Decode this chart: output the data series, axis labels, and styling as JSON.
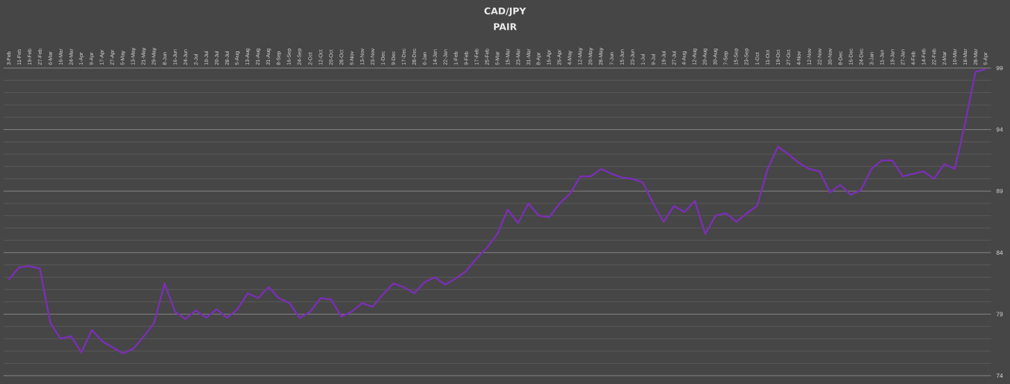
{
  "chart_data": {
    "type": "line",
    "title": "CAD/JPY",
    "subtitle": "PAIR",
    "categories": [
      "3-Feb",
      "11-Feb",
      "19-Feb",
      "27-Feb",
      "6-Mar",
      "16-Mar",
      "24-Mar",
      "1-Apr",
      "9-Apr",
      "17-Apr",
      "27-Apr",
      "5-May",
      "13-May",
      "21-May",
      "29-May",
      "8-Jun",
      "16-Jun",
      "24-Jun",
      "2-Jul",
      "10-Jul",
      "20-Jul",
      "28-Jul",
      "5-Aug",
      "13-Aug",
      "21-Aug",
      "31-Aug",
      "8-Sep",
      "16-Sep",
      "24-Sep",
      "2-Oct",
      "12-Oct",
      "20-Oct",
      "28-Oct",
      "5-Nov",
      "13-Nov",
      "23-Nov",
      "1-Dec",
      "9-Dec",
      "17-Dec",
      "28-Dec",
      "6-Jan",
      "14-Jan",
      "22-Jan",
      "1-Feb",
      "9-Feb",
      "17-Feb",
      "25-Feb",
      "5-Mar",
      "15-Mar",
      "23-Mar",
      "31-Mar",
      "8-Apr",
      "16-Apr",
      "26-Apr",
      "4-May",
      "12-May",
      "20-May",
      "28-May",
      "7-Jun",
      "15-Jun",
      "23-Jun",
      "1-Jul",
      "9-Jul",
      "19-Jul",
      "27-Jul",
      "4-Aug",
      "12-Aug",
      "20-Aug",
      "30-Aug",
      "7-Sep",
      "15-Sep",
      "23-Sep",
      "1-Oct",
      "11-Oct",
      "19-Oct",
      "27-Oct",
      "4-Nov",
      "12-Nov",
      "22-Nov",
      "30-Nov",
      "8-Dec",
      "16-Dec",
      "24-Dec",
      "3-Jan",
      "11-Jan",
      "19-Jan",
      "27-Jan",
      "4-Feb",
      "14-Feb",
      "22-Feb",
      "2-Mar",
      "10-Mar",
      "18-Mar",
      "28-Mar",
      "5-Apr"
    ],
    "values": [
      81.8,
      82.8,
      82.9,
      82.7,
      78.3,
      77.0,
      77.2,
      75.9,
      77.7,
      76.8,
      76.3,
      75.8,
      76.2,
      77.2,
      78.3,
      81.5,
      79.2,
      78.6,
      79.3,
      78.7,
      79.4,
      78.7,
      79.4,
      80.7,
      80.3,
      81.2,
      80.3,
      79.9,
      78.7,
      79.2,
      80.3,
      80.2,
      78.8,
      79.2,
      79.9,
      79.6,
      80.6,
      81.5,
      81.2,
      80.7,
      81.6,
      82.0,
      81.4,
      81.9,
      82.5,
      83.5,
      84.4,
      85.5,
      87.5,
      86.4,
      88.0,
      87.0,
      86.9,
      88.0,
      88.8,
      90.2,
      90.2,
      90.8,
      90.4,
      90.1,
      90.0,
      89.7,
      88.0,
      86.5,
      87.8,
      87.3,
      88.2,
      85.5,
      87.0,
      87.2,
      86.5,
      87.2,
      87.8,
      90.8,
      92.6,
      92.0,
      91.3,
      90.8,
      90.6,
      88.9,
      89.5,
      88.7,
      89.1,
      90.8,
      91.5,
      91.5,
      90.2,
      90.4,
      90.6,
      90.0,
      91.2,
      90.8,
      94.5,
      98.7,
      98.9
    ],
    "color": "#7b2fb5",
    "ylim": [
      74,
      99
    ],
    "yticks": [
      74,
      79,
      84,
      89,
      94,
      99
    ],
    "grid": "y"
  }
}
